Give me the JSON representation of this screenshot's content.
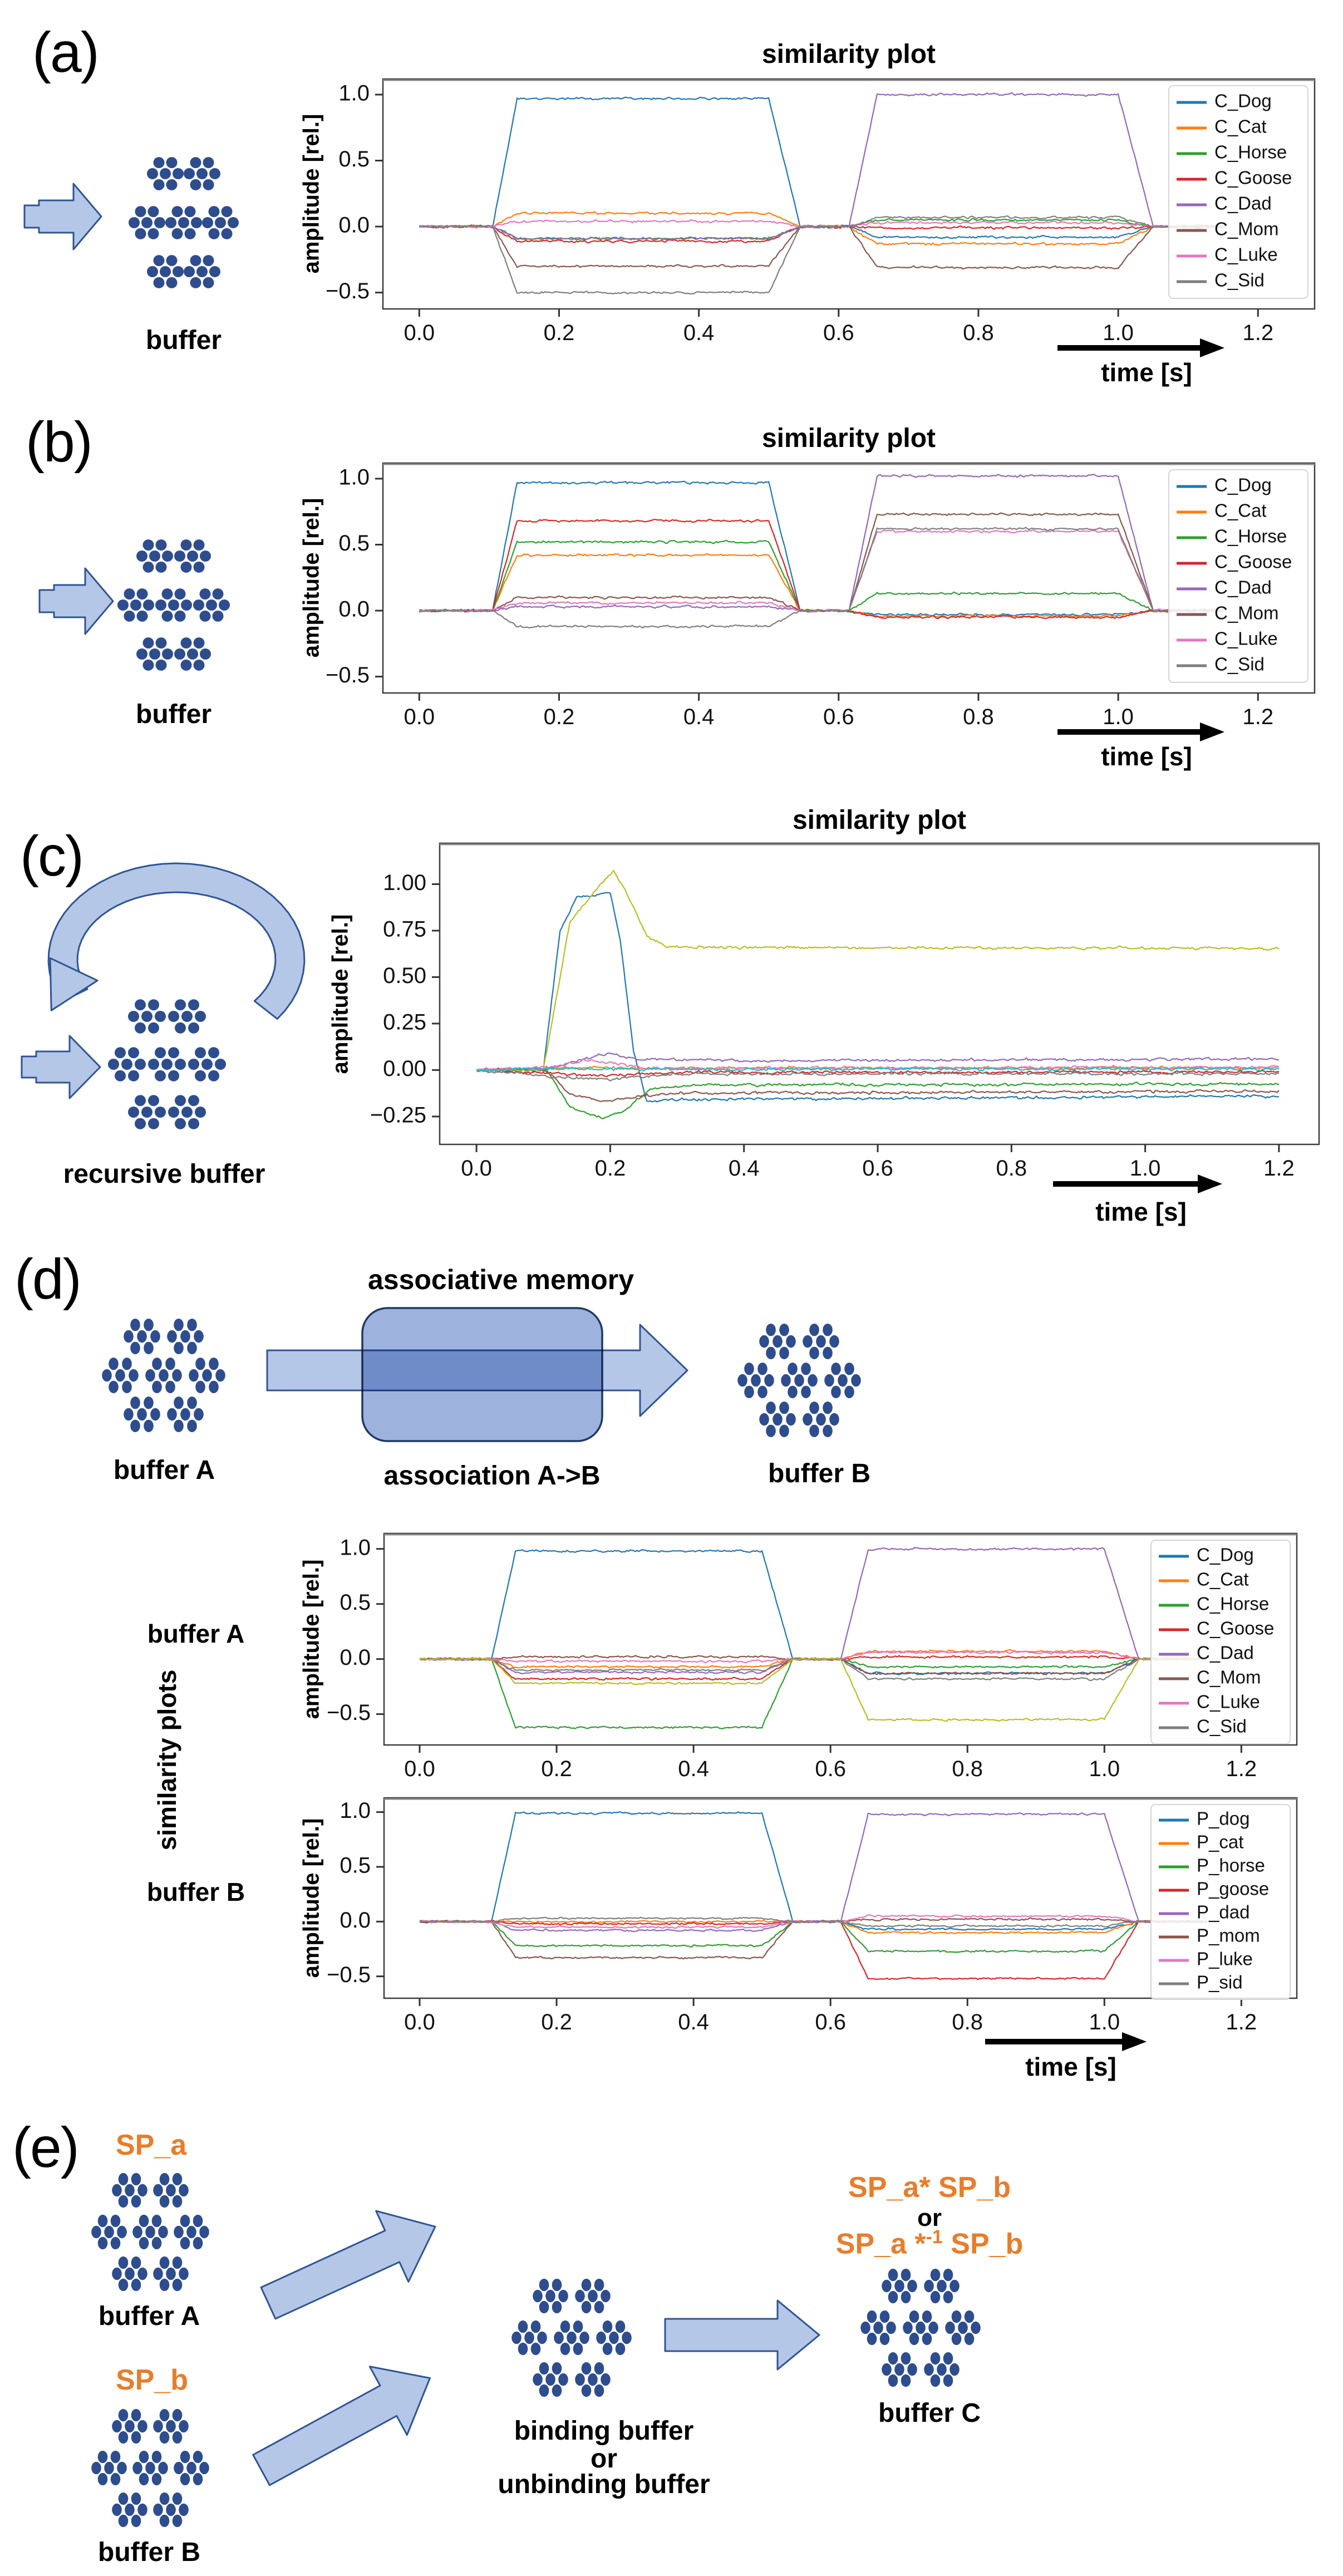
{
  "colors": {
    "arrow_fill": "#b4c7e7",
    "arrow_stroke": "#2f5496",
    "dot": "#2e4d8e",
    "rect_fill": "#9db3de",
    "rect_stroke": "#1f3864",
    "accent_orange": "#e87d2c"
  },
  "panels": {
    "a": {
      "label": "(a)",
      "buffer_label": "buffer",
      "time_label": "time [s]"
    },
    "b": {
      "label": "(b)",
      "buffer_label": "buffer",
      "time_label": "time [s]"
    },
    "c": {
      "label": "(c)",
      "buffer_label": "recursive buffer",
      "time_label": "time [s]"
    },
    "d": {
      "label": "(d)",
      "memory_title": "associative memory",
      "association_label": "association A->B",
      "buffer_a_label": "buffer A",
      "buffer_b_label": "buffer B",
      "plots_label": "similarity plots",
      "row_a_label": "buffer A",
      "row_b_label": "buffer B",
      "time_label": "time [s]"
    },
    "e": {
      "label": "(e)",
      "sp_a": "SP_a",
      "sp_b": "SP_b",
      "buffer_a_label": "buffer A",
      "buffer_b_label": "buffer B",
      "buffer_c_label": "buffer C",
      "binding_line1": "binding buffer",
      "binding_line2": "or",
      "binding_line3": "unbinding buffer",
      "formula1": "SP_a* SP_b",
      "formula_or": "or",
      "formula2_prefix": "SP_a *",
      "formula2_sup": "-1",
      "formula2_suffix": " SP_b"
    }
  },
  "chart_data": [
    {
      "id": "chart-a",
      "type": "line",
      "title": "similarity plot",
      "ylabel": "amplitude [rel.]",
      "xlabel": "time [s]",
      "xlim": [
        -0.052,
        1.281
      ],
      "ylim": [
        -0.624,
        1.118
      ],
      "xticks": [
        0.0,
        0.2,
        0.4,
        0.6,
        0.8,
        1.0,
        1.2
      ],
      "xtick_labels": [
        "0.0",
        "0.2",
        "0.4",
        "0.6",
        "0.8",
        "1.0",
        "1.2"
      ],
      "yticks": [
        1.0,
        0.5,
        0.0,
        -0.5
      ],
      "ytick_labels": [
        "1.0",
        "0.5",
        "0.0",
        "−0.5"
      ],
      "legend": true,
      "legend_position": "upper right",
      "grid": false,
      "noise": 0.022,
      "pulses": {
        "rise1": [
          0.105,
          0.14
        ],
        "fall1": [
          0.5,
          0.545
        ],
        "rise2": [
          0.615,
          0.655
        ],
        "fall2": [
          1.0,
          1.05
        ],
        "end": 1.15
      },
      "series": [
        {
          "name": "C_Dog",
          "color": "#1f77b4",
          "v1": 0.97,
          "v2": -0.08
        },
        {
          "name": "C_Cat",
          "color": "#ff7f0e",
          "v1": 0.1,
          "v2": -0.13
        },
        {
          "name": "C_Horse",
          "color": "#2ca02c",
          "v1": -0.09,
          "v2": 0.05
        },
        {
          "name": "C_Goose",
          "color": "#d62728",
          "v1": -0.11,
          "v2": -0.01
        },
        {
          "name": "C_Dad",
          "color": "#9467bd",
          "v1": -0.09,
          "v2": 1.0
        },
        {
          "name": "C_Mom",
          "color": "#8c564b",
          "v1": -0.3,
          "v2": -0.31
        },
        {
          "name": "C_Luke",
          "color": "#e377c2",
          "v1": 0.04,
          "v2": 0.03
        },
        {
          "name": "C_Sid",
          "color": "#7f7f7f",
          "v1": -0.5,
          "v2": 0.07
        }
      ]
    },
    {
      "id": "chart-b",
      "type": "line",
      "title": "similarity plot",
      "ylabel": "amplitude [rel.]",
      "xlabel": "time [s]",
      "xlim": [
        -0.052,
        1.281
      ],
      "ylim": [
        -0.624,
        1.118
      ],
      "xticks": [
        0.0,
        0.2,
        0.4,
        0.6,
        0.8,
        1.0,
        1.2
      ],
      "xtick_labels": [
        "0.0",
        "0.2",
        "0.4",
        "0.6",
        "0.8",
        "1.0",
        "1.2"
      ],
      "yticks": [
        1.0,
        0.5,
        0.0,
        -0.5
      ],
      "ytick_labels": [
        "1.0",
        "0.5",
        "0.0",
        "−0.5"
      ],
      "legend": true,
      "legend_position": "upper right",
      "grid": false,
      "noise": 0.022,
      "pulses": {
        "rise1": [
          0.105,
          0.14
        ],
        "fall1": [
          0.5,
          0.545
        ],
        "rise2": [
          0.615,
          0.655
        ],
        "fall2": [
          1.0,
          1.05
        ],
        "end": 1.15
      },
      "series": [
        {
          "name": "C_Dog",
          "color": "#1f77b4",
          "v1": 0.97,
          "v2": -0.03
        },
        {
          "name": "C_Cat",
          "color": "#ff7f0e",
          "v1": 0.42,
          "v2": -0.04
        },
        {
          "name": "C_Horse",
          "color": "#2ca02c",
          "v1": 0.52,
          "v2": 0.13
        },
        {
          "name": "C_Goose",
          "color": "#d62728",
          "v1": 0.68,
          "v2": -0.05
        },
        {
          "name": "C_Dad",
          "color": "#9467bd",
          "v1": 0.03,
          "v2": 1.02
        },
        {
          "name": "C_Mom",
          "color": "#8c564b",
          "v1": 0.1,
          "v2": 0.73
        },
        {
          "name": "C_Luke",
          "color": "#e377c2",
          "v1": 0.06,
          "v2": 0.6
        },
        {
          "name": "C_Sid",
          "color": "#7f7f7f",
          "v1": -0.12,
          "v2": 0.62
        }
      ]
    },
    {
      "id": "chart-c",
      "type": "line",
      "title": "similarity plot",
      "ylabel": "amplitude [rel.]",
      "xlabel": "time [s]",
      "xlim": [
        -0.055,
        1.26
      ],
      "ylim": [
        -0.4,
        1.22
      ],
      "xticks": [
        0.0,
        0.2,
        0.4,
        0.6,
        0.8,
        1.0,
        1.2
      ],
      "xtick_labels": [
        "0.0",
        "0.2",
        "0.4",
        "0.6",
        "0.8",
        "1.0",
        "1.2"
      ],
      "yticks": [
        1.0,
        0.75,
        0.5,
        0.25,
        0.0,
        -0.25
      ],
      "ytick_labels": [
        "1.00",
        "0.75",
        "0.50",
        "0.25",
        "0.00",
        "−0.25"
      ],
      "legend": false,
      "grid": false,
      "noise": 0.018,
      "series": [
        {
          "name": "",
          "color": "#1f77b4",
          "points": [
            [
              0,
              0
            ],
            [
              0.1,
              0
            ],
            [
              0.125,
              0.75
            ],
            [
              0.15,
              0.93
            ],
            [
              0.2,
              0.95
            ],
            [
              0.215,
              0.7
            ],
            [
              0.235,
              0.1
            ],
            [
              0.255,
              -0.17
            ],
            [
              0.29,
              -0.16
            ],
            [
              1.2,
              -0.14
            ]
          ]
        },
        {
          "name": "",
          "color": "#ff7f0e",
          "points": [
            [
              0,
              0
            ],
            [
              0.12,
              0.01
            ],
            [
              1.2,
              0.012
            ]
          ]
        },
        {
          "name": "",
          "color": "#2ca02c",
          "points": [
            [
              0,
              0
            ],
            [
              0.105,
              0
            ],
            [
              0.14,
              -0.2
            ],
            [
              0.19,
              -0.26
            ],
            [
              0.22,
              -0.22
            ],
            [
              0.26,
              -0.1
            ],
            [
              0.32,
              -0.08
            ],
            [
              1.2,
              -0.075
            ]
          ]
        },
        {
          "name": "",
          "color": "#d62728",
          "points": [
            [
              0,
              0
            ],
            [
              0.13,
              -0.02
            ],
            [
              0.2,
              -0.03
            ],
            [
              0.3,
              -0.012
            ],
            [
              1.2,
              -0.01
            ]
          ]
        },
        {
          "name": "",
          "color": "#9467bd",
          "points": [
            [
              0,
              0
            ],
            [
              0.11,
              0.01
            ],
            [
              0.15,
              0.05
            ],
            [
              0.2,
              0.09
            ],
            [
              0.24,
              0.06
            ],
            [
              0.4,
              0.05
            ],
            [
              1.2,
              0.06
            ]
          ]
        },
        {
          "name": "",
          "color": "#8c564b",
          "points": [
            [
              0,
              0
            ],
            [
              0.105,
              0
            ],
            [
              0.14,
              -0.13
            ],
            [
              0.19,
              -0.17
            ],
            [
              0.24,
              -0.14
            ],
            [
              0.3,
              -0.125
            ],
            [
              1.2,
              -0.115
            ]
          ]
        },
        {
          "name": "",
          "color": "#e377c2",
          "points": [
            [
              0,
              0
            ],
            [
              0.12,
              0.02
            ],
            [
              0.16,
              0.05
            ],
            [
              0.2,
              0.04
            ],
            [
              0.26,
              0.01
            ],
            [
              1.2,
              0.015
            ]
          ]
        },
        {
          "name": "",
          "color": "#7f7f7f",
          "points": [
            [
              0,
              0
            ],
            [
              0.13,
              -0.04
            ],
            [
              0.2,
              -0.05
            ],
            [
              0.3,
              -0.02
            ],
            [
              1.2,
              -0.02
            ]
          ]
        },
        {
          "name": "",
          "color": "#bcbd22",
          "points": [
            [
              0,
              0
            ],
            [
              0.1,
              0
            ],
            [
              0.14,
              0.8
            ],
            [
              0.19,
              1.02
            ],
            [
              0.205,
              1.07
            ],
            [
              0.225,
              0.95
            ],
            [
              0.255,
              0.72
            ],
            [
              0.285,
              0.66
            ],
            [
              1.2,
              0.655
            ]
          ]
        },
        {
          "name": "",
          "color": "#17becf",
          "points": [
            [
              0,
              0
            ],
            [
              0.15,
              0.005
            ],
            [
              1.2,
              0.005
            ]
          ]
        }
      ]
    },
    {
      "id": "chart-da",
      "type": "line",
      "title": "",
      "ylabel": "amplitude [rel.]",
      "xlabel": "",
      "xlim": [
        -0.052,
        1.281
      ],
      "ylim": [
        -0.78,
        1.14
      ],
      "xticks": [
        0.0,
        0.2,
        0.4,
        0.6,
        0.8,
        1.0,
        1.2
      ],
      "xtick_labels": [
        "0.0",
        "0.2",
        "0.4",
        "0.6",
        "0.8",
        "1.0",
        "1.2"
      ],
      "yticks": [
        1.0,
        0.5,
        0.0,
        -0.5
      ],
      "ytick_labels": [
        "1.0",
        "0.5",
        "0.0",
        "−0.5"
      ],
      "legend": true,
      "legend_position": "upper right",
      "grid": false,
      "noise": 0.024,
      "pulses": {
        "rise1": [
          0.105,
          0.14
        ],
        "fall1": [
          0.5,
          0.545
        ],
        "rise2": [
          0.615,
          0.655
        ],
        "fall2": [
          1.0,
          1.05
        ],
        "end": 1.15
      },
      "series": [
        {
          "name": "C_Dog",
          "color": "#1f77b4",
          "v1": 0.98,
          "v2": -0.13
        },
        {
          "name": "C_Cat",
          "color": "#ff7f0e",
          "v1": -0.07,
          "v2": 0.07
        },
        {
          "name": "C_Horse",
          "color": "#2ca02c",
          "v1": -0.62,
          "v2": -0.07
        },
        {
          "name": "C_Goose",
          "color": "#d62728",
          "v1": -0.18,
          "v2": 0.02
        },
        {
          "name": "C_Dad",
          "color": "#9467bd",
          "v1": -0.12,
          "v2": 1.0
        },
        {
          "name": "C_Mom",
          "color": "#8c564b",
          "v1": 0.02,
          "v2": -0.13
        },
        {
          "name": "C_Luke",
          "color": "#e377c2",
          "v1": -0.02,
          "v2": 0.06
        },
        {
          "name": "C_Sid",
          "color": "#7f7f7f",
          "v1": -0.1,
          "v2": -0.18
        },
        {
          "name": "",
          "color": "#bcbd22",
          "v1": -0.22,
          "v2": -0.55
        }
      ]
    },
    {
      "id": "chart-db",
      "type": "line",
      "title": "",
      "ylabel": "amplitude [rel.]",
      "xlabel": "time [s]",
      "xlim": [
        -0.052,
        1.281
      ],
      "ylim": [
        -0.7,
        1.13
      ],
      "xticks": [
        0.0,
        0.2,
        0.4,
        0.6,
        0.8,
        1.0,
        1.2
      ],
      "xtick_labels": [
        "0.0",
        "0.2",
        "0.4",
        "0.6",
        "0.8",
        "1.0",
        "1.2"
      ],
      "yticks": [
        1.0,
        0.5,
        0.0,
        -0.5
      ],
      "ytick_labels": [
        "1.0",
        "0.5",
        "0.0",
        "−0.5"
      ],
      "legend": true,
      "legend_position": "upper right",
      "grid": false,
      "noise": 0.022,
      "pulses": {
        "rise1": [
          0.105,
          0.14
        ],
        "fall1": [
          0.5,
          0.545
        ],
        "rise2": [
          0.615,
          0.655
        ],
        "fall2": [
          1.0,
          1.05
        ],
        "end": 1.15
      },
      "series": [
        {
          "name": "P_dog",
          "color": "#1f77b4",
          "v1": 0.99,
          "v2": -0.07
        },
        {
          "name": "P_cat",
          "color": "#ff7f0e",
          "v1": 0.0,
          "v2": -0.1
        },
        {
          "name": "P_horse",
          "color": "#2ca02c",
          "v1": -0.22,
          "v2": -0.27
        },
        {
          "name": "P_goose",
          "color": "#d62728",
          "v1": -0.02,
          "v2": -0.52
        },
        {
          "name": "P_dad",
          "color": "#9467bd",
          "v1": -0.08,
          "v2": 0.98
        },
        {
          "name": "P_mom",
          "color": "#8c564b",
          "v1": -0.33,
          "v2": 0.02
        },
        {
          "name": "P_luke",
          "color": "#e377c2",
          "v1": -0.05,
          "v2": 0.05
        },
        {
          "name": "P_sid",
          "color": "#7f7f7f",
          "v1": 0.03,
          "v2": -0.04
        }
      ]
    }
  ]
}
